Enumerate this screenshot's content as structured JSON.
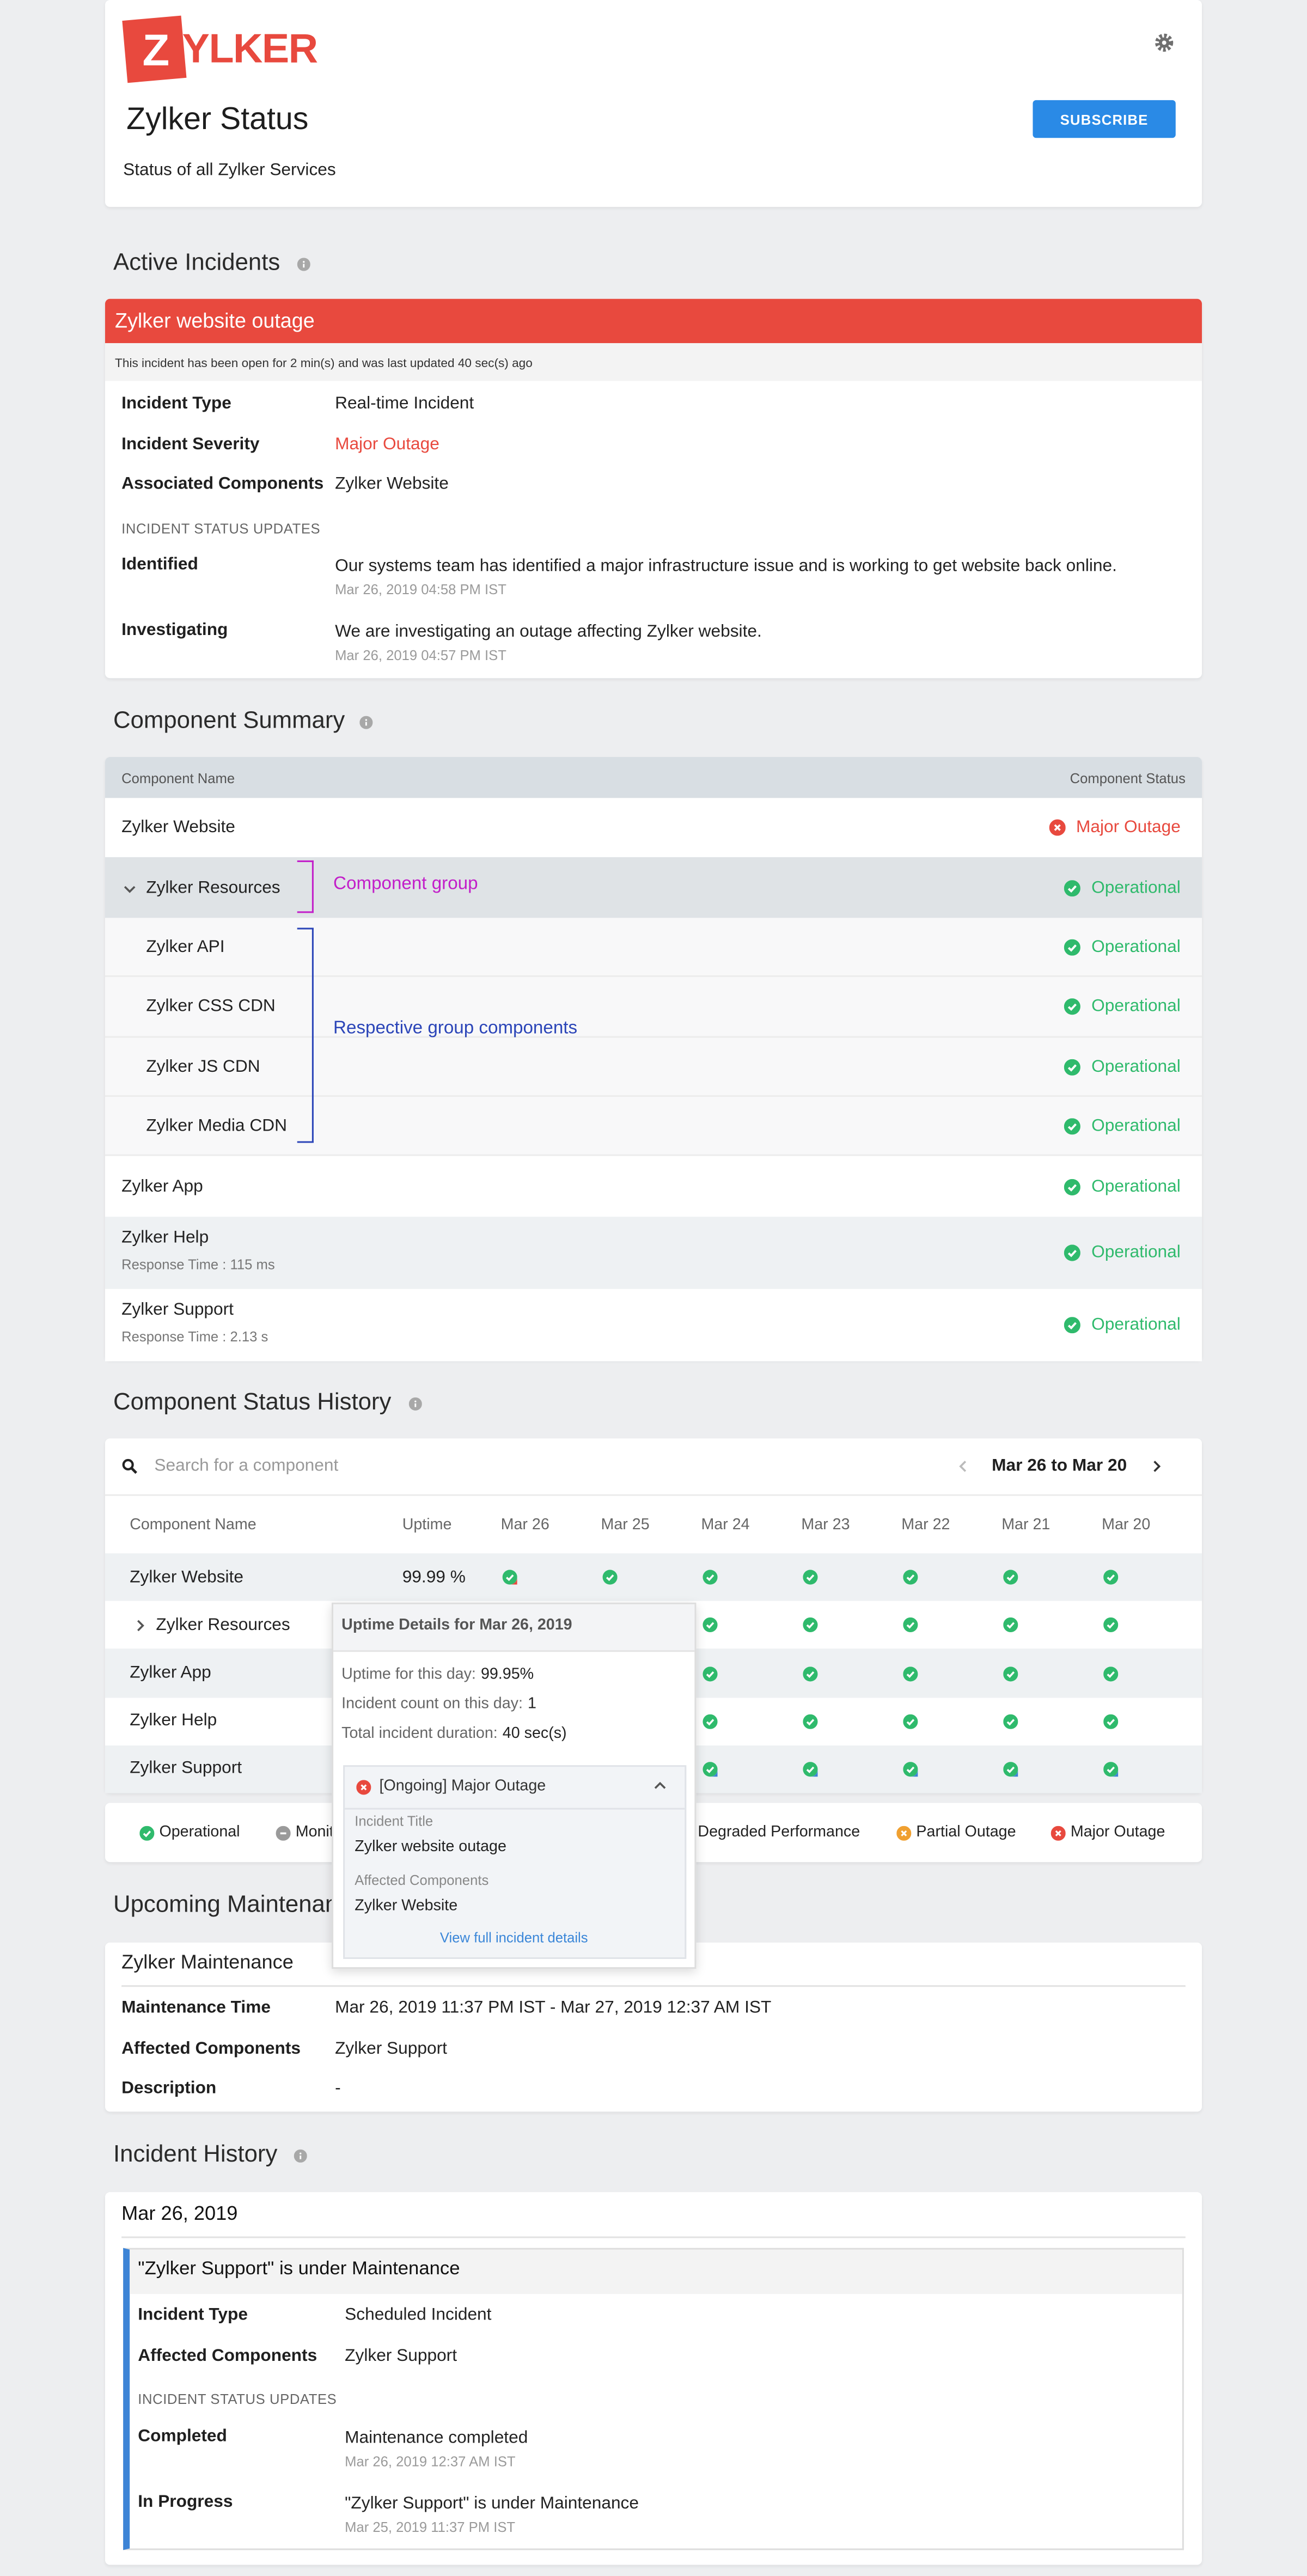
{
  "header": {
    "logo_mark": "Z",
    "logo_text": "YLKER",
    "title": "Zylker Status",
    "subtitle": "Status of all Zylker Services",
    "subscribe": "SUBSCRIBE"
  },
  "active_incidents": {
    "heading": "Active Incidents",
    "incident": {
      "title": "Zylker website outage",
      "note": "This incident has been open for 2 min(s) and was last updated 40 sec(s) ago",
      "fields": [
        {
          "label": "Incident Type",
          "value": "Real-time Incident"
        },
        {
          "label": "Incident Severity",
          "value": "Major Outage",
          "color": "#e8493e"
        },
        {
          "label": "Associated Components",
          "value": "Zylker Website"
        }
      ],
      "updates_heading": "INCIDENT STATUS UPDATES",
      "updates": [
        {
          "status": "Identified",
          "text": "Our systems team has identified a major infrastructure issue and is working to get website back online.",
          "time": "Mar 26, 2019 04:58 PM IST"
        },
        {
          "status": "Investigating",
          "text": "We are investigating an outage affecting Zylker website.",
          "time": "Mar 26, 2019 04:57 PM IST"
        }
      ]
    }
  },
  "component_summary": {
    "heading": "Component Summary",
    "columns": [
      "Component Name",
      "Component Status"
    ],
    "rows": [
      {
        "name": "Zylker Website",
        "status": "Major Outage"
      },
      {
        "name": "Zylker Resources",
        "status": "Operational",
        "children": [
          {
            "name": "Zylker API",
            "status": "Operational"
          },
          {
            "name": "Zylker CSS CDN",
            "status": "Operational"
          },
          {
            "name": "Zylker JS CDN",
            "status": "Operational"
          },
          {
            "name": "Zylker Media CDN",
            "status": "Operational"
          }
        ]
      },
      {
        "name": "Zylker App",
        "status": "Operational"
      },
      {
        "name": "Zylker Help",
        "status": "Operational",
        "response_time": "Response Time : 115 ms"
      },
      {
        "name": "Zylker Support",
        "status": "Operational",
        "response_time": "Response Time : 2.13 s"
      }
    ],
    "annotations": {
      "group": "Component group",
      "children": "Respective group components"
    }
  },
  "history": {
    "heading": "Component Status History",
    "search_placeholder": "Search for a component",
    "range": "Mar 26 to Mar 20",
    "columns": [
      "Component Name",
      "Uptime",
      "Mar 26",
      "Mar 25",
      "Mar 24",
      "Mar 23",
      "Mar 22",
      "Mar 21",
      "Mar 20"
    ],
    "rows": [
      {
        "name": "Zylker Website",
        "uptime": "99.99 %"
      },
      {
        "name": "Zylker Resources"
      },
      {
        "name": "Zylker App"
      },
      {
        "name": "Zylker Help"
      },
      {
        "name": "Zylker Support"
      }
    ],
    "legend": [
      {
        "label": "Operational",
        "color": "#2fba6c"
      },
      {
        "label": "Monitoring",
        "color": "#9a9a9a"
      },
      {
        "label": "Degraded Performance",
        "color": "#e8b83e"
      },
      {
        "label": "Partial Outage",
        "color": "#f0a030"
      },
      {
        "label": "Major Outage",
        "color": "#e8493e"
      }
    ],
    "popup": {
      "title": "Uptime Details for Mar 26, 2019",
      "stats": [
        {
          "label": "Uptime for this day:",
          "value": "99.95%"
        },
        {
          "label": "Incident count on this day:",
          "value": "1"
        },
        {
          "label": "Total incident duration:",
          "value": "40 sec(s)"
        }
      ],
      "incident": {
        "title": "[Ongoing] Major Outage",
        "fields": [
          {
            "label": "Incident Title",
            "value": "Zylker website outage"
          },
          {
            "label": "Affected Components",
            "value": "Zylker Website"
          }
        ],
        "link": "View full incident details"
      }
    }
  },
  "maintenance": {
    "heading": "Upcoming Maintenance",
    "title": "Zylker Maintenance",
    "fields": [
      {
        "label": "Maintenance Time",
        "value": "Mar 26, 2019 11:37 PM IST - Mar 27, 2019 12:37 AM IST"
      },
      {
        "label": "Affected Components",
        "value": "Zylker Support"
      },
      {
        "label": "Description",
        "value": "-"
      }
    ]
  },
  "incident_history": {
    "heading": "Incident History",
    "days": [
      {
        "date": "Mar 26, 2019",
        "incidents": [
          {
            "title": "\"Zylker Support\" is under Maintenance",
            "fields": [
              {
                "label": "Incident Type",
                "value": "Scheduled Incident"
              },
              {
                "label": "Affected Components",
                "value": "Zylker Support"
              }
            ],
            "updates_heading": "INCIDENT STATUS UPDATES",
            "updates": [
              {
                "status": "Completed",
                "text": "Maintenance completed",
                "time": "Mar 26, 2019 12:37 AM IST"
              },
              {
                "status": "In Progress",
                "text": "\"Zylker Support\" is under Maintenance",
                "time": "Mar 25, 2019 11:37 PM IST"
              }
            ]
          }
        ]
      }
    ]
  }
}
